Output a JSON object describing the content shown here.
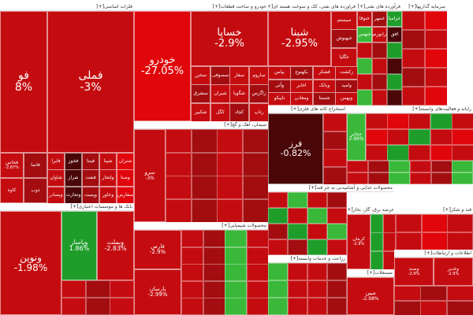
{
  "toggle_label": "[+]",
  "colors": {
    "strong_red": "#e0060b",
    "red": "#c40c10",
    "dark_red": "#a30d10",
    "maroon": "#4a0707",
    "green": "#1f9d2a",
    "bright_green": "#39b83a",
    "border": "#ffffff"
  },
  "sectors": {
    "s1": {
      "title": "فلزات اساسی"
    },
    "s2": {
      "title": "خودرو و ساخت قطعات"
    },
    "s3": {
      "title": "فراورده های نفتی، کک و سوخت هسته ای"
    },
    "s4": {
      "title": "فرآورده های نفتی"
    },
    "s5": {
      "title": "سرمایه گذاریها"
    },
    "s6": {
      "title": "بانک ها و موسسات اعتباری"
    },
    "s7": {
      "title": "سیمان، آهک و گچ"
    },
    "s8": {
      "title": "استخراج کانه های فلزی"
    },
    "s9": {
      "title": "رایانه و فعالیت‌های وابسته"
    },
    "s10": {
      "title": "محصولات شیمیایی"
    },
    "s11": {
      "title": "محصولات غذایی و آشامیدنی به جز قند"
    },
    "s12": {
      "title": "عرضه برق، گاز، بخار"
    },
    "s13": {
      "title": "قند و شکر"
    },
    "s14": {
      "title": "زراعت و خدمات وابسته"
    },
    "s15": {
      "title": "مستغلات"
    },
    "s16": {
      "title": "اطلاعات و ارتباطات"
    }
  },
  "tiles": {
    "fameli": {
      "symbol": "فملی",
      "change": "-3%"
    },
    "fooolad": {
      "symbol": "فو",
      "change": "8%"
    },
    "khodro": {
      "symbol": "خودرو",
      "change": "-27.05%"
    },
    "khsapa": {
      "symbol": "خساپا",
      "change": "-2.9%"
    },
    "shebandar": {
      "symbol": "شبنا",
      "change": "-2.95%"
    },
    "faraz": {
      "symbol": "فرز",
      "change": "-0.82%"
    },
    "vanovin": {
      "symbol": "ونوین",
      "change": "-1.98%"
    },
    "vpasar": {
      "symbol": "وپاسار",
      "change": "1.86%"
    },
    "vbmellat": {
      "symbol": "وبملت",
      "change": "-2.83%"
    },
    "farsi": {
      "symbol": "فارس",
      "change": "-2.9%"
    },
    "parsan": {
      "symbol": "پارسان",
      "change": "-2.99%"
    },
    "mobin": {
      "symbol": "مبین",
      "change": "-2.98%"
    },
    "sarv": {
      "symbol": "سرو",
      "change": "-3%"
    },
    "khabar": {
      "symbol": "حخابر",
      "change": "2.99%"
    },
    "fkhas": {
      "symbol": "فخاس",
      "change": "-2.87%"
    },
    "kerman": {
      "symbol": "کرمان",
      "change": "-2.9%"
    },
    "vsnd": {
      "symbol": "وصند",
      "change": "-2.9%"
    },
    "vghadir": {
      "symbol": "وغدیر",
      "change": "-2.9%"
    },
    "small_1": {
      "symbol": "فولاد",
      "change": ""
    },
    "small_2": {
      "symbol": "فاسا",
      "change": ""
    },
    "small_3": {
      "symbol": "کاوه",
      "change": ""
    },
    "small_4": {
      "symbol": "ذوب",
      "change": ""
    },
    "small_5": {
      "symbol": "فایرا",
      "change": ""
    },
    "small_6": {
      "symbol": "فخوز",
      "change": ""
    },
    "small_7": {
      "symbol": "فپنتا",
      "change": ""
    },
    "small_8": {
      "symbol": "شپنا",
      "change": ""
    },
    "small_9": {
      "symbol": "شتران",
      "change": ""
    },
    "small_10": {
      "symbol": "شاوان",
      "change": ""
    },
    "small_11": {
      "symbol": "شراز",
      "change": ""
    },
    "small_12": {
      "symbol": "فنفت",
      "change": ""
    },
    "small_13": {
      "symbol": "ولتجار",
      "change": ""
    },
    "small_14": {
      "symbol": "وصنا",
      "change": ""
    },
    "small_15": {
      "symbol": "وبصادر",
      "change": ""
    },
    "small_16": {
      "symbol": "وتجارت",
      "change": ""
    },
    "small_17": {
      "symbol": "وپست",
      "change": ""
    },
    "small_18": {
      "symbol": "وخاور",
      "change": ""
    },
    "small_19": {
      "symbol": "سفارس",
      "change": ""
    },
    "small_20": {
      "symbol": "سخزر",
      "change": ""
    },
    "small_21": {
      "symbol": "سصوفی",
      "change": ""
    },
    "small_22": {
      "symbol": "سفار",
      "change": ""
    },
    "small_23": {
      "symbol": "ساروم",
      "change": ""
    },
    "small_24": {
      "symbol": "سشرق",
      "change": ""
    },
    "small_25": {
      "symbol": "شیران",
      "change": ""
    },
    "small_26": {
      "symbol": "شگویا",
      "change": ""
    },
    "small_27": {
      "symbol": "زاگرس",
      "change": ""
    },
    "small_28": {
      "symbol": "شکبیر",
      "change": ""
    },
    "small_29": {
      "symbol": "کگل",
      "change": ""
    },
    "small_30": {
      "symbol": "کچاد",
      "change": ""
    },
    "small_31": {
      "symbol": "رتاپ",
      "change": ""
    },
    "small_32": {
      "symbol": "سیستم",
      "change": ""
    },
    "small_33": {
      "symbol": "غبهنوش",
      "change": ""
    },
    "small_34": {
      "symbol": "غگلپا",
      "change": ""
    },
    "small_35": {
      "symbol": "بپاس",
      "change": ""
    },
    "small_36": {
      "symbol": "بکهنوج",
      "change": ""
    },
    "small_37": {
      "symbol": "قشکر",
      "change": ""
    },
    "small_38": {
      "symbol": "زکشت",
      "change": ""
    },
    "small_39": {
      "symbol": "وآتی",
      "change": ""
    },
    "small_40": {
      "symbol": "اخابر",
      "change": ""
    },
    "small_41": {
      "symbol": "وبانک",
      "change": ""
    },
    "small_42": {
      "symbol": "وامید",
      "change": ""
    },
    "small_43": {
      "symbol": "تاپیکو",
      "change": ""
    },
    "small_44": {
      "symbol": "ومعادن",
      "change": ""
    },
    "small_45": {
      "symbol": "شستا",
      "change": ""
    },
    "small_46": {
      "symbol": "وبهمن",
      "change": ""
    },
    "small_47": {
      "symbol": "ختوقا",
      "change": ""
    },
    "small_48": {
      "symbol": "خمهر",
      "change": ""
    },
    "small_49": {
      "symbol": "خزامیا",
      "change": ""
    },
    "small_50": {
      "symbol": "خبهمن",
      "change": ""
    },
    "small_51": {
      "symbol": "فرابورس",
      "change": ""
    },
    "small_52": {
      "symbol": "افق",
      "change": ""
    }
  }
}
